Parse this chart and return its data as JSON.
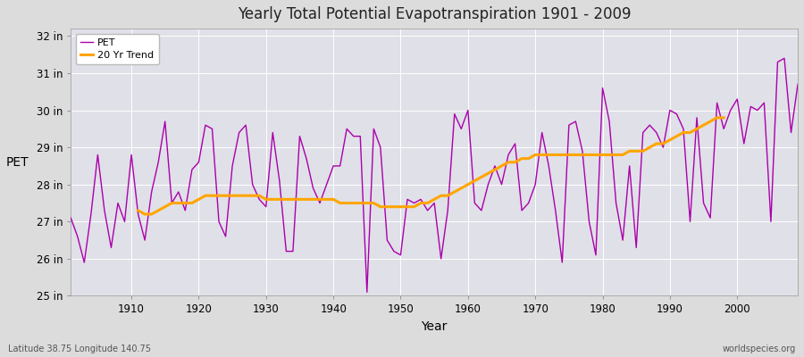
{
  "title": "Yearly Total Potential Evapotranspiration 1901 - 2009",
  "xlabel": "Year",
  "ylabel": "PET",
  "xlim": [
    1901,
    2009
  ],
  "ylim": [
    25,
    32.2
  ],
  "yticks": [
    25,
    26,
    27,
    28,
    29,
    30,
    31,
    32
  ],
  "ytick_labels": [
    "25 in",
    "26 in",
    "27 in",
    "28 in",
    "29 in",
    "30 in",
    "31 in",
    "32 in"
  ],
  "xticks": [
    1910,
    1920,
    1930,
    1940,
    1950,
    1960,
    1970,
    1980,
    1990,
    2000
  ],
  "pet_color": "#aa00aa",
  "trend_color": "#FFA500",
  "background_color": "#dcdcdc",
  "plot_bg_color": "#e0e0e8",
  "grid_color": "#ffffff",
  "legend_labels": [
    "PET",
    "20 Yr Trend"
  ],
  "footer_left": "Latitude 38.75 Longitude 140.75",
  "footer_right": "worldspecies.org",
  "years": [
    1901,
    1902,
    1903,
    1904,
    1905,
    1906,
    1907,
    1908,
    1909,
    1910,
    1911,
    1912,
    1913,
    1914,
    1915,
    1916,
    1917,
    1918,
    1919,
    1920,
    1921,
    1922,
    1923,
    1924,
    1925,
    1926,
    1927,
    1928,
    1929,
    1930,
    1931,
    1932,
    1933,
    1934,
    1935,
    1936,
    1937,
    1938,
    1939,
    1940,
    1941,
    1942,
    1943,
    1944,
    1945,
    1946,
    1947,
    1948,
    1949,
    1950,
    1951,
    1952,
    1953,
    1954,
    1955,
    1956,
    1957,
    1958,
    1959,
    1960,
    1961,
    1962,
    1963,
    1964,
    1965,
    1966,
    1967,
    1968,
    1969,
    1970,
    1971,
    1972,
    1973,
    1974,
    1975,
    1976,
    1977,
    1978,
    1979,
    1980,
    1981,
    1982,
    1983,
    1984,
    1985,
    1986,
    1987,
    1988,
    1989,
    1990,
    1991,
    1992,
    1993,
    1994,
    1995,
    1996,
    1997,
    1998,
    1999,
    2000,
    2001,
    2002,
    2003,
    2004,
    2005,
    2006,
    2007,
    2008,
    2009
  ],
  "pet_values": [
    27.1,
    26.6,
    25.9,
    27.2,
    28.8,
    27.3,
    26.3,
    27.5,
    27.0,
    28.8,
    27.2,
    26.5,
    27.8,
    28.6,
    29.7,
    27.5,
    27.8,
    27.3,
    28.4,
    28.6,
    29.6,
    29.5,
    27.0,
    26.6,
    28.5,
    29.4,
    29.6,
    28.0,
    27.6,
    27.4,
    29.4,
    28.1,
    26.2,
    26.2,
    29.3,
    28.7,
    27.9,
    27.5,
    28.0,
    28.5,
    28.5,
    29.5,
    29.3,
    29.3,
    25.1,
    29.5,
    29.0,
    26.5,
    26.2,
    26.1,
    27.6,
    27.5,
    27.6,
    27.3,
    27.5,
    26.0,
    27.3,
    29.9,
    29.5,
    30.0,
    27.5,
    27.3,
    28.0,
    28.5,
    28.0,
    28.8,
    29.1,
    27.3,
    27.5,
    28.0,
    29.4,
    28.5,
    27.3,
    25.9,
    29.6,
    29.7,
    28.9,
    27.0,
    26.1,
    30.6,
    29.7,
    27.5,
    26.5,
    28.5,
    26.3,
    29.4,
    29.6,
    29.4,
    29.0,
    30.0,
    29.9,
    29.5,
    27.0,
    29.8,
    27.5,
    27.1,
    30.2,
    29.5,
    30.0,
    30.3,
    29.1,
    30.1,
    30.0,
    30.2,
    27.0,
    31.3,
    31.4,
    29.4,
    30.7
  ],
  "trend_values": [
    null,
    null,
    null,
    null,
    null,
    null,
    null,
    null,
    null,
    null,
    27.3,
    27.2,
    27.2,
    27.3,
    27.4,
    27.5,
    27.5,
    27.5,
    27.5,
    27.6,
    27.7,
    27.7,
    27.7,
    27.7,
    27.7,
    27.7,
    27.7,
    27.7,
    27.7,
    27.6,
    27.6,
    27.6,
    27.6,
    27.6,
    27.6,
    27.6,
    27.6,
    27.6,
    27.6,
    27.6,
    27.5,
    27.5,
    27.5,
    27.5,
    27.5,
    27.5,
    27.4,
    27.4,
    27.4,
    27.4,
    27.4,
    27.4,
    27.5,
    27.5,
    27.6,
    27.7,
    27.7,
    27.8,
    27.9,
    28.0,
    28.1,
    28.2,
    28.3,
    28.4,
    28.5,
    28.6,
    28.6,
    28.7,
    28.7,
    28.8,
    28.8,
    28.8,
    28.8,
    28.8,
    28.8,
    28.8,
    28.8,
    28.8,
    28.8,
    28.8,
    28.8,
    28.8,
    28.8,
    28.9,
    28.9,
    28.9,
    29.0,
    29.1,
    29.1,
    29.2,
    29.3,
    29.4,
    29.4,
    29.5,
    29.6,
    29.7,
    29.8,
    29.8,
    null,
    null,
    null,
    null,
    null,
    null,
    null,
    null,
    null,
    null,
    null
  ]
}
